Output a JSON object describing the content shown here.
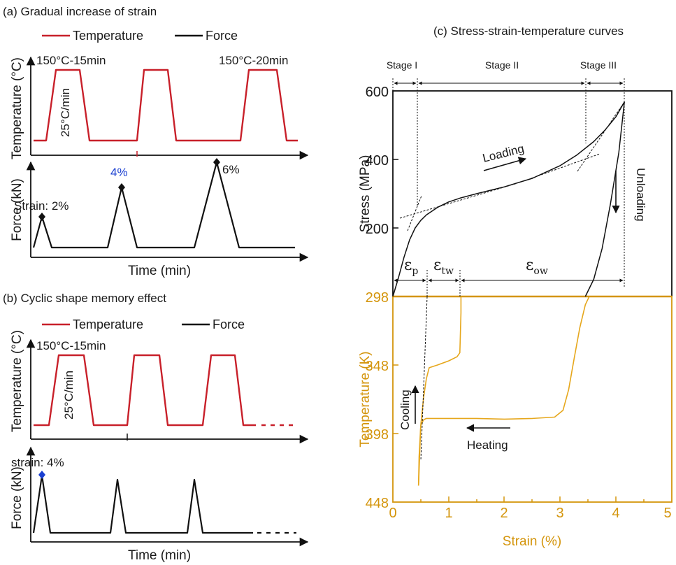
{
  "panel_a": {
    "title": "(a) Gradual increase of strain",
    "legend_temperature": "Temperature",
    "legend_force": "Force",
    "temp_axis_title": "Temperature (°C)",
    "force_axis_title": "Force (kN)",
    "time_axis_title": "Time (min)",
    "label_hold_1": "150°C-15min",
    "label_hold_3": "150°C-20min",
    "label_rate": "25°C/min",
    "label_strain_1": "Strain: 2%",
    "label_strain_2": "4%",
    "label_strain_3": "6%",
    "colors": {
      "temperature": "#c8202a",
      "force": "#111111",
      "highlight": "#1a3fd1"
    }
  },
  "panel_b": {
    "title": "(b) Cyclic shape memory effect",
    "legend_temperature": "Temperature",
    "legend_force": "Force",
    "temp_axis_title": "Temperature (°C)",
    "force_axis_title": "Force (kN)",
    "time_axis_title": "Time (min)",
    "label_hold": "150°C-15min",
    "label_rate": "25°C/min",
    "label_strain": "strain: 4%"
  },
  "panel_c": {
    "title": "(c) Stress-strain-temperature curves",
    "stage_1": "Stage I",
    "stage_2": "Stage II",
    "stage_3": "Stage III",
    "loading": "Loading",
    "unloading": "Unloading",
    "cooling": "Cooling",
    "heating": "Heating",
    "eps_p": "ε",
    "eps_p_sub": "p",
    "eps_tw": "ε",
    "eps_tw_sub": "tw",
    "eps_ow": "ε",
    "eps_ow_sub": "ow",
    "stress_tick_600": "600",
    "stress_tick_400": "400",
    "stress_tick_200": "200",
    "temp_tick_298": "298",
    "temp_tick_348": "348",
    "temp_tick_398": "398",
    "temp_tick_448": "448",
    "strain_tick_0": "0",
    "strain_tick_1": "1",
    "strain_tick_2": "2",
    "strain_tick_3": "3",
    "strain_tick_4": "4",
    "strain_tick_5": "5"
  },
  "chart_data": [
    {
      "type": "line",
      "title": "Stress-strain-temperature curves",
      "xlabel": "Strain (%)",
      "ylabel": "Stress (MPa)",
      "xlim": [
        0,
        5
      ],
      "ylim": [
        0,
        600
      ],
      "series": [
        {
          "name": "Loading",
          "x": [
            0,
            0.1,
            0.2,
            0.3,
            0.4,
            0.5,
            0.6,
            0.8,
            1.0,
            1.2,
            1.5,
            2.0,
            2.5,
            3.0,
            3.3,
            3.6,
            3.8,
            4.0,
            4.15
          ],
          "y": [
            0,
            55,
            115,
            165,
            200,
            222,
            238,
            260,
            276,
            287,
            300,
            320,
            345,
            382,
            413,
            452,
            485,
            525,
            568
          ]
        },
        {
          "name": "Unloading",
          "x": [
            4.15,
            4.05,
            3.9,
            3.75,
            3.6,
            3.45
          ],
          "y": [
            568,
            420,
            270,
            140,
            50,
            0
          ]
        }
      ],
      "color": "#111111"
    },
    {
      "type": "line",
      "xlabel": "Strain (%)",
      "ylabel": "Temperature (K)",
      "xlim": [
        0,
        5
      ],
      "ylim": [
        298,
        448
      ],
      "y_inverted": true,
      "series": [
        {
          "name": "Cooling",
          "x": [
            1.22,
            1.22,
            1.2,
            1.15,
            1.0,
            0.8,
            0.65,
            0.6,
            0.55,
            0.5,
            0.47,
            0.46
          ],
          "y": [
            298,
            310,
            339,
            342,
            345,
            348,
            350,
            358,
            372,
            392,
            415,
            436
          ]
        },
        {
          "name": "Heating",
          "x": [
            0.46,
            0.5,
            0.55,
            0.6,
            1.0,
            1.5,
            2.0,
            2.5,
            2.9,
            3.05,
            3.15,
            3.25,
            3.35,
            3.45,
            3.52
          ],
          "y": [
            436,
            392,
            388,
            387,
            387,
            387,
            387.5,
            387,
            386,
            381,
            366,
            343,
            321,
            304,
            298
          ]
        }
      ],
      "color": "#e6a71c"
    },
    {
      "type": "line",
      "title": "Gradual increase of strain",
      "xlabel": "Time (min)",
      "ylabel": "Temperature (°C)",
      "series": [
        {
          "name": "Temperature",
          "color": "#c8202a"
        },
        {
          "name": "Force",
          "color": "#111111"
        }
      ]
    },
    {
      "type": "line",
      "title": "Cyclic shape memory effect",
      "xlabel": "Time (min)",
      "ylabel": "Temperature (°C)",
      "series": [
        {
          "name": "Temperature",
          "color": "#c8202a"
        },
        {
          "name": "Force",
          "color": "#111111"
        }
      ]
    }
  ]
}
